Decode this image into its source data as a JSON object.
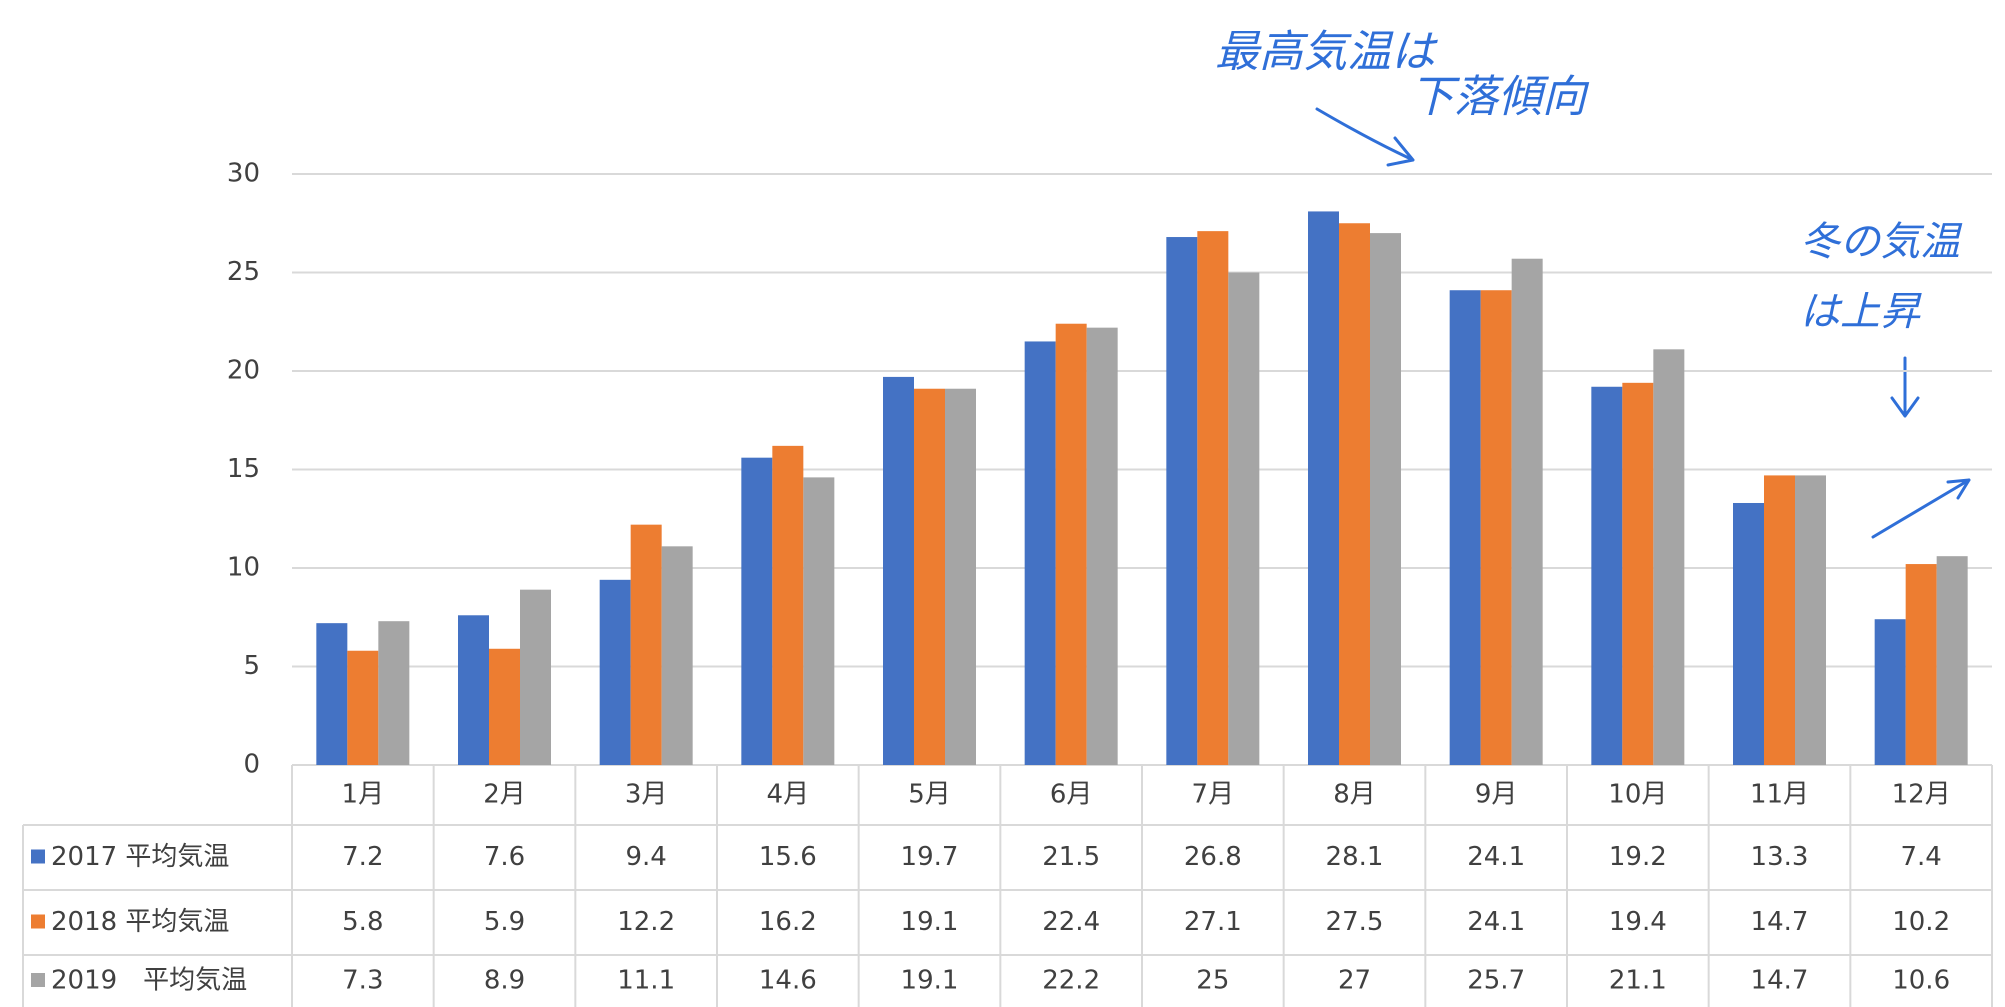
{
  "chart_data": {
    "type": "bar",
    "categories": [
      "1月",
      "2月",
      "3月",
      "4月",
      "5月",
      "6月",
      "7月",
      "8月",
      "9月",
      "10月",
      "11月",
      "12月"
    ],
    "series": [
      {
        "name": "2017 平均気温",
        "color": "#4472c4",
        "values": [
          7.2,
          7.6,
          9.4,
          15.6,
          19.7,
          21.5,
          26.8,
          28.1,
          24.1,
          19.2,
          13.3,
          7.4
        ]
      },
      {
        "name": "2018 平均気温",
        "color": "#ed7d31",
        "values": [
          5.8,
          5.9,
          12.2,
          16.2,
          19.1,
          22.4,
          27.1,
          27.5,
          24.1,
          19.4,
          14.7,
          10.2
        ]
      },
      {
        "name": "2019　平均気温",
        "color": "#a5a5a5",
        "values": [
          7.3,
          8.9,
          11.1,
          14.6,
          19.1,
          22.2,
          25,
          27,
          25.7,
          21.1,
          14.7,
          10.6
        ]
      }
    ],
    "ylim": [
      0,
      30
    ],
    "yticks": [
      0,
      5,
      10,
      15,
      20,
      25,
      30
    ],
    "grid": true,
    "annotations": [
      "最高気温は",
      "下落傾向",
      "冬の気温",
      "は上昇"
    ]
  }
}
